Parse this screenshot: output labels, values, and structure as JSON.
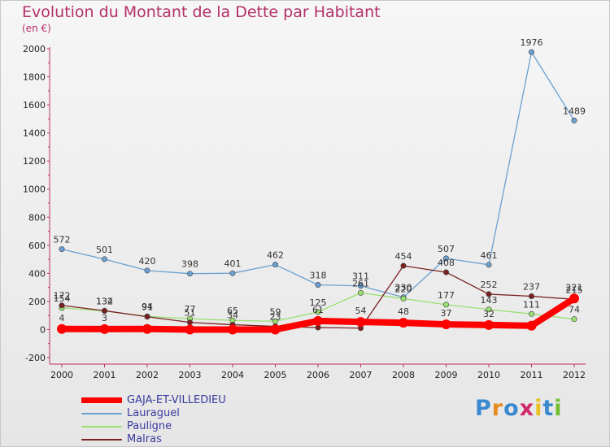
{
  "title": "Evolution du Montant de la Dette par Habitant",
  "subtitle": "(en €)",
  "logo": "Proxiti",
  "chart_data": {
    "type": "line",
    "x": [
      "2000",
      "2001",
      "2002",
      "2003",
      "2004",
      "2005",
      "2006",
      "2007",
      "2008",
      "2009",
      "2010",
      "2011",
      "2012"
    ],
    "ylim": [
      -200,
      2000
    ],
    "yticks": [
      -200,
      0,
      200,
      400,
      600,
      800,
      1000,
      1200,
      1400,
      1600,
      1800,
      2000
    ],
    "grid": false,
    "legend_position": "bottom-left",
    "series": [
      {
        "name": "GAJA-ET-VILLEDIEU",
        "color": "#ff0000",
        "values": [
          4,
          3,
          4,
          0,
          0,
          0,
          61,
          54,
          48,
          37,
          32,
          27,
          221
        ],
        "labels": [
          "4",
          "3",
          "",
          "",
          "",
          "",
          "61",
          "54",
          "48",
          "37",
          "32",
          "",
          "221"
        ]
      },
      {
        "name": "Lauraguel",
        "color": "#6aa0d0",
        "values": [
          572,
          501,
          420,
          398,
          401,
          462,
          318,
          311,
          230,
          507,
          461,
          1976,
          1489
        ],
        "labels": [
          "572",
          "501",
          "420",
          "398",
          "401",
          "462",
          "318",
          "311",
          "230",
          "507",
          "461",
          "1976",
          "1489"
        ]
      },
      {
        "name": "Pauligne",
        "color": "#98e070",
        "values": [
          154,
          132,
          94,
          77,
          65,
          59,
          125,
          261,
          220,
          177,
          143,
          111,
          74
        ],
        "labels": [
          "154",
          "132",
          "94",
          "77",
          "65",
          "59",
          "125",
          "261",
          "220",
          "177",
          "143",
          "111",
          "74"
        ]
      },
      {
        "name": "Malras",
        "color": "#7a2020",
        "values": [
          172,
          134,
          91,
          51,
          34,
          23,
          14,
          10,
          454,
          408,
          252,
          237,
          215
        ],
        "labels": [
          "172",
          "134",
          "91",
          "51",
          "34",
          "23",
          "",
          "",
          "454",
          "408",
          "252",
          "237",
          "215"
        ]
      }
    ]
  }
}
